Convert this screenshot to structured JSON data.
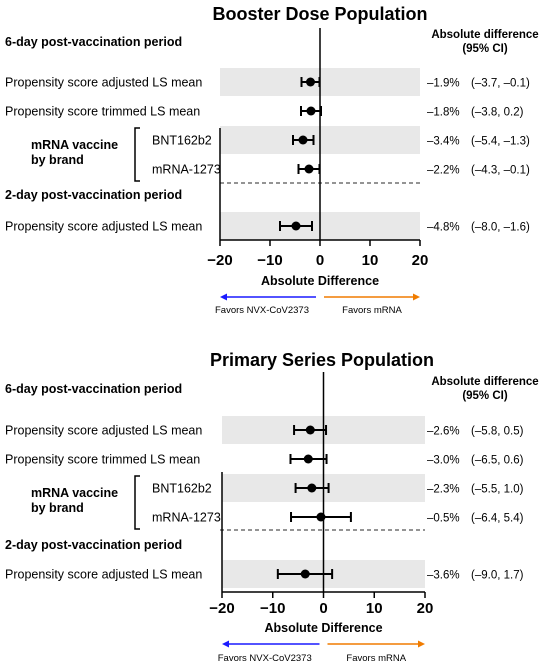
{
  "colors": {
    "band": "#e8e8e8",
    "marker": "#000000",
    "favors_left": "#1a1aff",
    "favors_right": "#f07c00",
    "divider": "#555555"
  },
  "chart_data": [
    {
      "type": "forest",
      "title": "Booster Dose Population",
      "xlabel": "Absolute Difference",
      "xlim": [
        -20,
        20
      ],
      "xticks": [
        "−20",
        "−10",
        "0",
        "10",
        "20"
      ],
      "value_header": [
        "Absolute difference",
        "(95% CI)"
      ],
      "favors_left": "Favors NVX-CoV2373",
      "favors_right": "Favors mRNA",
      "sections": [
        {
          "label": "6-day post-vaccination period",
          "group_label": [
            "mRNA vaccine",
            "by brand"
          ],
          "rows": [
            {
              "label": "Propensity score adjusted LS mean",
              "est": -1.9,
              "lo": -3.7,
              "hi": -0.1,
              "pct": "–1.9%",
              "ci": "(–3.7, –0.1)"
            },
            {
              "label": "Propensity score trimmed LS mean",
              "est": -1.8,
              "lo": -3.8,
              "hi": 0.2,
              "pct": "–1.8%",
              "ci": "(–3.8, 0.2)"
            },
            {
              "label": "BNT162b2",
              "est": -3.4,
              "lo": -5.4,
              "hi": -1.3,
              "pct": "–3.4%",
              "ci": "(–5.4, –1.3)"
            },
            {
              "label": "mRNA-1273",
              "est": -2.2,
              "lo": -4.3,
              "hi": -0.1,
              "pct": "–2.2%",
              "ci": "(–4.3, –0.1)"
            }
          ]
        },
        {
          "label": "2-day post-vaccination period",
          "rows": [
            {
              "label": "Propensity score adjusted LS mean",
              "est": -4.8,
              "lo": -8.0,
              "hi": -1.6,
              "pct": "–4.8%",
              "ci": "(–8.0, –1.6)"
            }
          ]
        }
      ]
    },
    {
      "type": "forest",
      "title": "Primary Series Population",
      "xlabel": "Absolute Difference",
      "xlim": [
        -20,
        20
      ],
      "xticks": [
        "−20",
        "−10",
        "0",
        "10",
        "20"
      ],
      "value_header": [
        "Absolute difference",
        "(95% CI)"
      ],
      "favors_left": "Favors NVX-CoV2373",
      "favors_right": "Favors mRNA",
      "sections": [
        {
          "label": "6-day post-vaccination period",
          "group_label": [
            "mRNA vaccine",
            "by brand"
          ],
          "rows": [
            {
              "label": "Propensity score adjusted LS mean",
              "est": -2.6,
              "lo": -5.8,
              "hi": 0.5,
              "pct": "–2.6%",
              "ci": "(–5.8, 0.5)"
            },
            {
              "label": "Propensity score trimmed LS mean",
              "est": -3.0,
              "lo": -6.5,
              "hi": 0.6,
              "pct": "–3.0%",
              "ci": "(–6.5, 0.6)"
            },
            {
              "label": "BNT162b2",
              "est": -2.3,
              "lo": -5.5,
              "hi": 1.0,
              "pct": "–2.3%",
              "ci": "(–5.5, 1.0)"
            },
            {
              "label": "mRNA-1273",
              "est": -0.5,
              "lo": -6.4,
              "hi": 5.4,
              "pct": "–0.5%",
              "ci": "(–6.4, 5.4)"
            }
          ]
        },
        {
          "label": "2-day post-vaccination period",
          "rows": [
            {
              "label": "Propensity score adjusted LS mean",
              "est": -3.6,
              "lo": -9.0,
              "hi": 1.7,
              "pct": "–3.6%",
              "ci": "(–9.0, 1.7)"
            }
          ]
        }
      ]
    }
  ]
}
